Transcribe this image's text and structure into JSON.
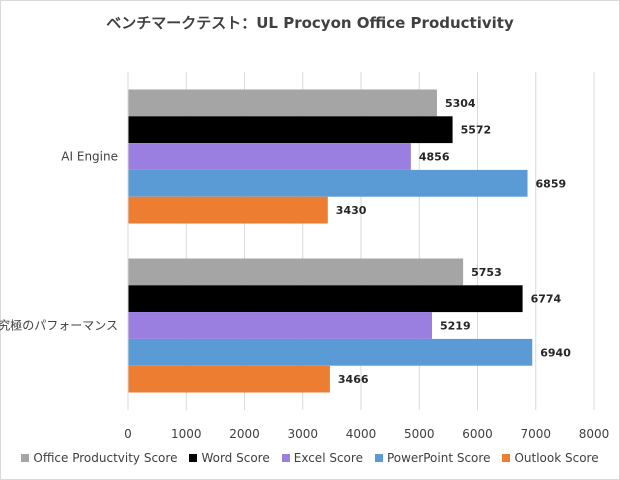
{
  "chart_data": {
    "type": "bar",
    "orientation": "horizontal",
    "title": "ベンチマークテスト：UL Procyon Office Productivity",
    "categories": [
      "AI Engine",
      "究極のパフォーマンス"
    ],
    "series": [
      {
        "name": "Office Productvity Score",
        "color": "#a5a5a5",
        "values": [
          5304,
          5753
        ]
      },
      {
        "name": "Word Score",
        "color": "#000000",
        "values": [
          5572,
          6774
        ]
      },
      {
        "name": "Excel Score",
        "color": "#9a7fe0",
        "values": [
          4856,
          5219
        ]
      },
      {
        "name": "PowerPoint Score",
        "color": "#5b9bd5",
        "values": [
          6859,
          6940
        ]
      },
      {
        "name": "Outlook Score",
        "color": "#ed7d31",
        "values": [
          3430,
          3466
        ]
      }
    ],
    "xlim": [
      0,
      8000
    ],
    "xticks": [
      0,
      1000,
      2000,
      3000,
      4000,
      5000,
      6000,
      7000,
      8000
    ],
    "grid": true,
    "legend_position": "bottom"
  }
}
